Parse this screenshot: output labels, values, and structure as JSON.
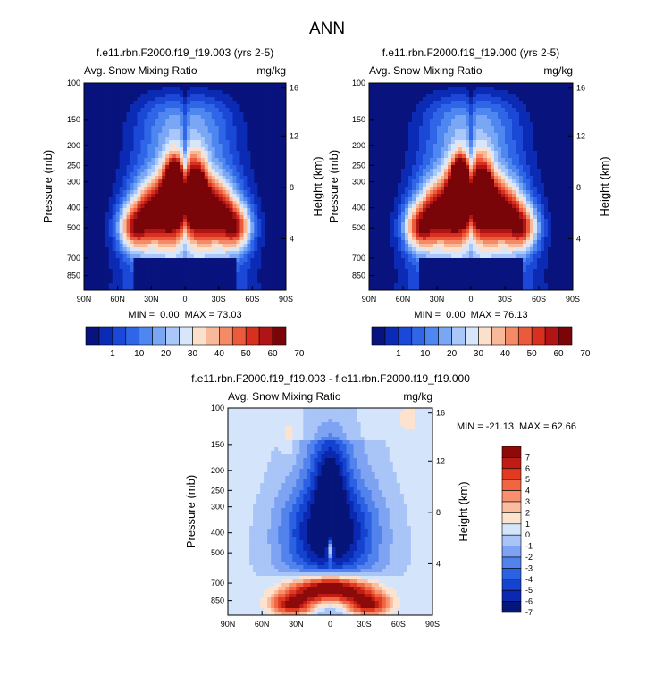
{
  "figure": {
    "title": "ANN"
  },
  "colors": {
    "field_scale": [
      "#08137e",
      "#0b2bb5",
      "#1b48d6",
      "#2f66e8",
      "#4f87f0",
      "#7aa7f4",
      "#a9c7f8",
      "#d7e6fb",
      "#fbe0cc",
      "#f8b89a",
      "#f48a66",
      "#ec5a3c",
      "#d8301f",
      "#b01415",
      "#7a0509"
    ],
    "diff_scale": [
      "#06157a",
      "#0a28b0",
      "#1443d0",
      "#2d61e4",
      "#5283ec",
      "#7ea3f2",
      "#a9c4f7",
      "#d4e5fb",
      "#fde3cf",
      "#fbbda0",
      "#f8906e",
      "#f06543",
      "#de3b22",
      "#bf1d13",
      "#8c0b0a"
    ]
  },
  "chart_data": [
    {
      "type": "heatmap",
      "title": "f.e11.rbn.F2000.f19_f19.003 (yrs 2-5)",
      "left_label": "Avg. Snow Mixing Ratio",
      "right_label": "mg/kg",
      "ylabel": "Pressure (mb)",
      "ylabel_right": "Height (km)",
      "xticks": [
        "90N",
        "60N",
        "30N",
        "0",
        "30S",
        "60S",
        "90S"
      ],
      "yticks": [
        100,
        150,
        200,
        250,
        300,
        400,
        500,
        700,
        850
      ],
      "yticks_right": [
        16,
        12,
        8,
        4
      ],
      "stats": "MIN =  0.00  MAX = 73.03",
      "min": 0.0,
      "max": 73.03,
      "colorbar": {
        "labels": [
          "1",
          "10",
          "20",
          "30",
          "40",
          "50",
          "60",
          "70"
        ]
      }
    },
    {
      "type": "heatmap",
      "title": "f.e11.rbn.F2000.f19_f19.000 (yrs 2-5)",
      "left_label": "Avg. Snow Mixing Ratio",
      "right_label": "mg/kg",
      "ylabel": "Pressure (mb)",
      "ylabel_right": "Height (km)",
      "xticks": [
        "90N",
        "60N",
        "30N",
        "0",
        "30S",
        "60S",
        "90S"
      ],
      "yticks": [
        100,
        150,
        200,
        250,
        300,
        400,
        500,
        700,
        850
      ],
      "yticks_right": [
        16,
        12,
        8,
        4
      ],
      "stats": "MIN =  0.00  MAX = 76.13",
      "min": 0.0,
      "max": 76.13,
      "colorbar": {
        "labels": [
          "1",
          "10",
          "20",
          "30",
          "40",
          "50",
          "60",
          "70"
        ]
      }
    },
    {
      "type": "heatmap",
      "title": "f.e11.rbn.F2000.f19_f19.003 - f.e11.rbn.F2000.f19_f19.000",
      "left_label": "Avg. Snow Mixing Ratio",
      "right_label": "mg/kg",
      "ylabel": "Pressure (mb)",
      "ylabel_right": "Height (km)",
      "xticks": [
        "90N",
        "60N",
        "30N",
        "0",
        "30S",
        "60S",
        "90S"
      ],
      "yticks": [
        100,
        150,
        200,
        250,
        300,
        400,
        500,
        700,
        850
      ],
      "yticks_right": [
        16,
        12,
        8,
        4
      ],
      "stats": "MIN = -21.13  MAX = 62.66",
      "min": -21.13,
      "max": 62.66,
      "colorbar": {
        "labels": [
          "7",
          "6",
          "5",
          "4",
          "3",
          "2",
          "1",
          "0",
          "-1",
          "-2",
          "-3",
          "-4",
          "-5",
          "-6",
          "-7"
        ]
      }
    }
  ]
}
